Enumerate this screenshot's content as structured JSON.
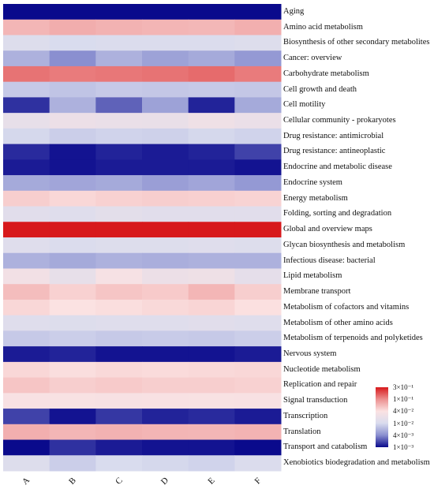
{
  "chart_data": {
    "type": "heatmap",
    "columns": [
      "A",
      "B",
      "C",
      "D",
      "E",
      "F"
    ],
    "rows": [
      {
        "label": "Aging",
        "values": [
          0.0009,
          0.0009,
          0.0009,
          0.001,
          0.0009,
          0.0009
        ]
      },
      {
        "label": "Amino acid metabolism",
        "values": [
          0.065,
          0.072,
          0.068,
          0.066,
          0.064,
          0.07
        ]
      },
      {
        "label": "Biosynthesis of other secondary metabolites",
        "values": [
          0.012,
          0.01,
          0.011,
          0.011,
          0.011,
          0.012
        ]
      },
      {
        "label": "Cancer: overview",
        "values": [
          0.006,
          0.004,
          0.006,
          0.005,
          0.0055,
          0.0045
        ]
      },
      {
        "label": "Carbohydrate metabolism",
        "values": [
          0.13,
          0.12,
          0.125,
          0.13,
          0.14,
          0.12
        ]
      },
      {
        "label": "Cell growth and death",
        "values": [
          0.008,
          0.0075,
          0.008,
          0.0078,
          0.008,
          0.0078
        ]
      },
      {
        "label": "Cell motility",
        "values": [
          0.0015,
          0.006,
          0.0025,
          0.005,
          0.0013,
          0.0055
        ]
      },
      {
        "label": "Cellular community - prokaryotes",
        "values": [
          0.018,
          0.022,
          0.02,
          0.019,
          0.025,
          0.021
        ]
      },
      {
        "label": "Drug resistance: antimicrobial",
        "values": [
          0.0095,
          0.0085,
          0.009,
          0.0088,
          0.0095,
          0.009
        ]
      },
      {
        "label": "Drug resistance: antineoplastic",
        "values": [
          0.0014,
          0.0011,
          0.0013,
          0.0012,
          0.0013,
          0.0018
        ]
      },
      {
        "label": "Endocrine and metabolic disease",
        "values": [
          0.0012,
          0.0011,
          0.0012,
          0.0012,
          0.0012,
          0.0011
        ]
      },
      {
        "label": "Endocrine system",
        "values": [
          0.0055,
          0.0052,
          0.0055,
          0.0048,
          0.0052,
          0.0045
        ]
      },
      {
        "label": "Energy metabolism",
        "values": [
          0.05,
          0.045,
          0.048,
          0.05,
          0.049,
          0.047
        ]
      },
      {
        "label": "Folding, sorting and degradation",
        "values": [
          0.014,
          0.013,
          0.015,
          0.014,
          0.014,
          0.014
        ]
      },
      {
        "label": "Global and overview maps",
        "values": [
          0.32,
          0.3,
          0.31,
          0.3,
          0.3,
          0.31
        ]
      },
      {
        "label": "Glycan biosynthesis and metabolism",
        "values": [
          0.013,
          0.011,
          0.012,
          0.012,
          0.013,
          0.012
        ]
      },
      {
        "label": "Infectious disease: bacterial",
        "values": [
          0.006,
          0.0055,
          0.006,
          0.0058,
          0.006,
          0.006
        ]
      },
      {
        "label": "Lipid metabolism",
        "values": [
          0.028,
          0.018,
          0.032,
          0.022,
          0.024,
          0.016
        ]
      },
      {
        "label": "Membrane transport",
        "values": [
          0.06,
          0.048,
          0.055,
          0.052,
          0.065,
          0.05
        ]
      },
      {
        "label": "Metabolism of cofactors and vitamins",
        "values": [
          0.045,
          0.04,
          0.042,
          0.044,
          0.046,
          0.041
        ]
      },
      {
        "label": "Metabolism of other amino acids",
        "values": [
          0.013,
          0.012,
          0.013,
          0.013,
          0.014,
          0.013
        ]
      },
      {
        "label": "Metabolism of terpenoids and polyketides",
        "values": [
          0.008,
          0.0085,
          0.008,
          0.0082,
          0.008,
          0.0085
        ]
      },
      {
        "label": "Nervous system",
        "values": [
          0.0012,
          0.0013,
          0.0011,
          0.0011,
          0.0011,
          0.0012
        ]
      },
      {
        "label": "Nucleotide metabolism",
        "values": [
          0.045,
          0.042,
          0.044,
          0.043,
          0.044,
          0.045
        ]
      },
      {
        "label": "Replication and repair",
        "values": [
          0.055,
          0.05,
          0.052,
          0.05,
          0.05,
          0.048
        ]
      },
      {
        "label": "Signal transduction",
        "values": [
          0.035,
          0.036,
          0.034,
          0.035,
          0.036,
          0.035
        ]
      },
      {
        "label": "Transcription",
        "values": [
          0.0018,
          0.0011,
          0.0016,
          0.0013,
          0.0014,
          0.0012
        ]
      },
      {
        "label": "Translation",
        "values": [
          0.07,
          0.065,
          0.068,
          0.066,
          0.065,
          0.067
        ]
      },
      {
        "label": "Transport and catabolism",
        "values": [
          0.0009,
          0.0015,
          0.0012,
          0.0011,
          0.0011,
          0.0008
        ]
      },
      {
        "label": "Xenobiotics biodegradation and metabolism",
        "values": [
          0.012,
          0.0085,
          0.01,
          0.0095,
          0.009,
          0.011
        ]
      }
    ],
    "color_scale": {
      "stops": [
        {
          "label": "3×10⁻¹",
          "value": 0.3,
          "color": "#d7191c"
        },
        {
          "label": "1×10⁻¹",
          "value": 0.1,
          "color": "#ec8f8f"
        },
        {
          "label": "4×10⁻²",
          "value": 0.04,
          "color": "#fbe2e2"
        },
        {
          "label": "1×10⁻²",
          "value": 0.01,
          "color": "#d9dcee"
        },
        {
          "label": "4×10⁻³",
          "value": 0.004,
          "color": "#8a8fd0"
        },
        {
          "label": "1×10⁻³",
          "value": 0.001,
          "color": "#0a0a8c"
        }
      ],
      "scale": "log"
    }
  }
}
